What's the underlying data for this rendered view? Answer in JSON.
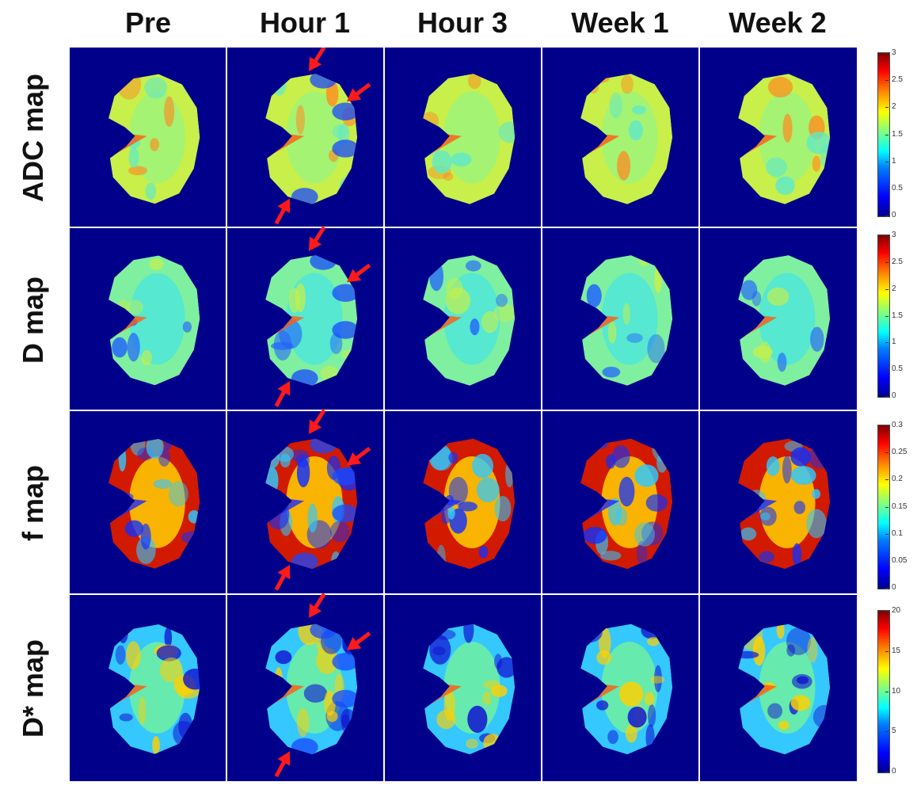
{
  "columns": [
    "Pre",
    "Hour 1",
    "Hour 3",
    "Week 1",
    "Week 2"
  ],
  "rows": [
    "ADC map",
    "D map",
    "f map",
    "D* map"
  ],
  "colorbars": [
    {
      "ticks": [
        "0",
        "0.5",
        "1",
        "1.5",
        "2",
        "2.5",
        "3"
      ]
    },
    {
      "ticks": [
        "0",
        "0.5",
        "1",
        "1.5",
        "2",
        "2.5",
        "3"
      ]
    },
    {
      "ticks": [
        "0",
        "0.05",
        "0.1",
        "0.15",
        "0.2",
        "0.25",
        "0.3"
      ]
    },
    {
      "ticks": [
        "0",
        "5",
        "10",
        "15",
        "20"
      ]
    }
  ],
  "colors": {
    "background": "#00008a",
    "grid_line": "#ffffff",
    "arrow": "#ff1a1a"
  }
}
